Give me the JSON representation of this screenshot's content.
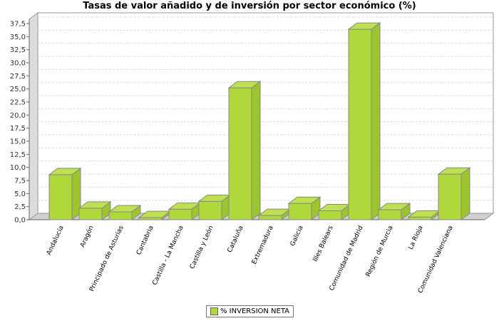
{
  "chart_data": {
    "type": "bar",
    "title": "Tasas de valor añadido y de inversión por sector económico (%)",
    "categories": [
      "Andalucía",
      "Aragón",
      "Principado de Asturias",
      "Cantabria",
      "Castilla - La Mancha",
      "Castilla y León",
      "Cataluña",
      "Extremadura",
      "Galicia",
      "Illes Balears",
      "Comunidad de Madrid",
      "Región de Murcia",
      "La Rioja",
      "Comunidad Valenciana"
    ],
    "series": [
      {
        "name": "% INVERSION NETA",
        "values": [
          8.6,
          2.2,
          1.5,
          0.4,
          2.0,
          3.5,
          25.2,
          0.8,
          3.1,
          1.7,
          36.4,
          1.9,
          0.5,
          8.7
        ]
      }
    ],
    "ylim": [
      0,
      37.5
    ],
    "yticks": [
      "0,0",
      "2,5",
      "5,0",
      "7,5",
      "10,0",
      "12,5",
      "15,0",
      "17,5",
      "20,0",
      "22,5",
      "25,0",
      "27,5",
      "30,0",
      "32,5",
      "35,0",
      "37,5"
    ],
    "grid": true,
    "legend": "bottom",
    "colors": {
      "bar": "#b0d83c",
      "bar_side": "#9cc42c",
      "bar_top": "#bfe050",
      "edge": "#888888"
    }
  }
}
